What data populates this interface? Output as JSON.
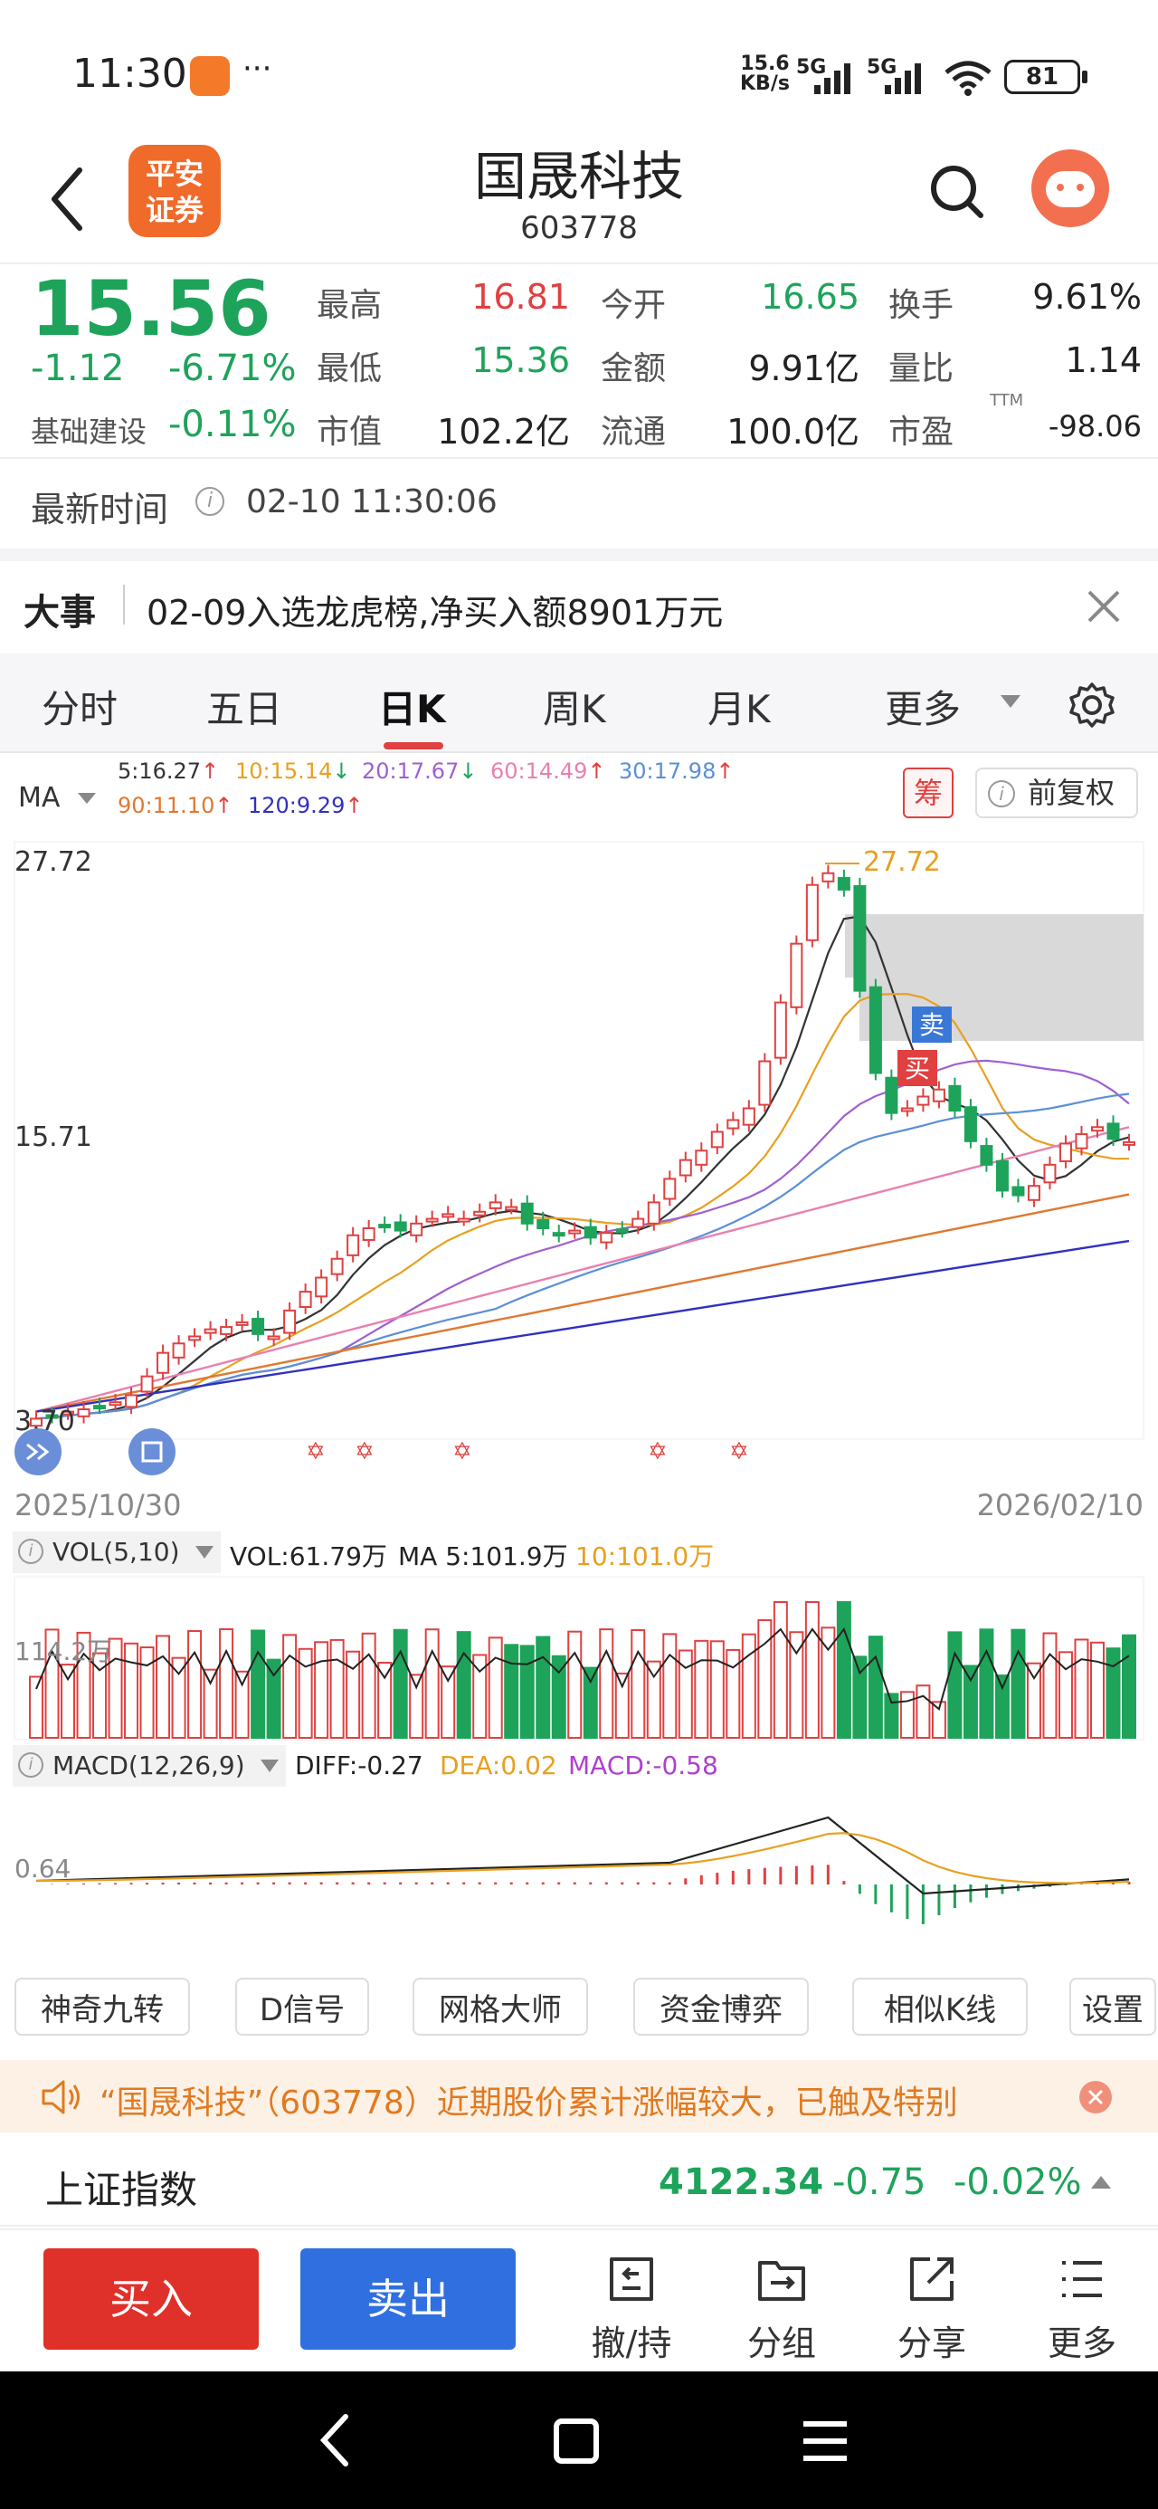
{
  "status_bar": {
    "time": "11:30",
    "network_speed_value": "15.6",
    "network_speed_unit": "KB/s",
    "signal1": "5G",
    "signal2": "5G",
    "battery": "81",
    "more_dots": "···"
  },
  "header": {
    "title": "国晟科技",
    "code": "603778",
    "broker_logo_line1": "平安",
    "broker_logo_line2": "证券"
  },
  "quote": {
    "price": "15.56",
    "change": "-1.12",
    "change_pct": "-6.71%",
    "sector_name": "基础建设",
    "sector_pct": "-0.11%",
    "high_label": "最高",
    "high": "16.81",
    "low_label": "最低",
    "low": "15.36",
    "mktcap_label": "市值",
    "mktcap": "102.2亿",
    "open_label": "今开",
    "open": "16.65",
    "amount_label": "金额",
    "amount": "9.91亿",
    "float_label": "流通",
    "float": "100.0亿",
    "turnover_label": "换手",
    "turnover": "9.61%",
    "vol_ratio_label": "量比",
    "vol_ratio": "1.14",
    "pe_label": "市盈",
    "pe_sup": "TTM",
    "pe": "-98.06"
  },
  "update": {
    "label": "最新时间",
    "time": "02-10 11:30:06"
  },
  "news": {
    "label": "大事",
    "text": "02-09入选龙虎榜,净买入额8901万元"
  },
  "tabs": [
    "分时",
    "五日",
    "日K",
    "周K",
    "月K",
    "更多"
  ],
  "ma_legend": {
    "label": "MA",
    "items": [
      {
        "text": "5:16.27",
        "arrow": "↑",
        "color": "#333333"
      },
      {
        "text": "10:15.14",
        "arrow": "↓",
        "color": "#e8a020"
      },
      {
        "text": "20:17.67",
        "arrow": "↓",
        "color": "#a060d0"
      },
      {
        "text": "60:14.49",
        "arrow": "↑",
        "color": "#e880b0"
      },
      {
        "text": "30:17.98",
        "arrow": "↑",
        "color": "#5b8fd6"
      },
      {
        "text": "90:11.10",
        "arrow": "↑",
        "color": "#e07830"
      },
      {
        "text": "120:9.29",
        "arrow": "↑",
        "color": "#3030c0"
      }
    ],
    "chip_button": "筹",
    "adjust_button": "前复权"
  },
  "chart_data": {
    "type": "candlestick",
    "price_max_label": "27.72",
    "price_mid_label": "15.71",
    "price_min_label": "3.70",
    "peak_annotation": "27.72",
    "sell_marker": "卖",
    "buy_marker": "买",
    "date_start": "2025/10/30",
    "date_end": "2026/02/10",
    "closes": [
      3.8,
      3.9,
      4.1,
      4.2,
      4.3,
      4.5,
      4.8,
      5.6,
      6.6,
      7.0,
      7.3,
      7.6,
      7.7,
      7.9,
      7.4,
      7.3,
      8.4,
      9.2,
      9.8,
      10.6,
      11.6,
      11.9,
      12.0,
      11.8,
      12.1,
      12.3,
      12.5,
      12.3,
      12.6,
      13.0,
      12.8,
      12.1,
      11.9,
      11.6,
      11.8,
      11.5,
      11.7,
      11.8,
      12.3,
      13.0,
      14.0,
      14.8,
      15.2,
      16.0,
      16.5,
      17.0,
      19.0,
      21.5,
      24.0,
      26.5,
      27.0,
      26.3,
      22.0,
      18.5,
      16.8,
      17.0,
      17.5,
      17.8,
      16.9,
      15.6,
      14.6,
      13.5,
      13.3,
      13.7,
      14.6,
      15.5,
      15.9,
      16.2,
      15.7,
      15.56
    ],
    "volume_label": "VOL(5,10)",
    "volume_values": "VOL:61.79万",
    "volume_ma5": "MA 5:101.9万",
    "volume_ma10": "10:101.0万",
    "volume_axis": "114.2万",
    "macd_label": "MACD(12,26,9)",
    "diff": "DIFF:-0.27",
    "dea": "DEA:0.02",
    "macd": "MACD:-0.58",
    "macd_axis": "0.64"
  },
  "tools": [
    "神奇九转",
    "D信号",
    "网格大师",
    "资金博弈",
    "相似K线",
    "设置"
  ],
  "alert": {
    "text": "“国晟科技”（603778）近期股价累计涨幅较大，已触及特别"
  },
  "index_bar": {
    "name": "上证指数",
    "value": "4122.34",
    "change": "-0.75",
    "pct": "-0.02%"
  },
  "bottom": {
    "buy": "买入",
    "sell": "卖出",
    "actions": [
      "撤/持",
      "分组",
      "分享",
      "更多"
    ]
  },
  "colors": {
    "up": "#e04040",
    "down": "#1ea35a",
    "buy_button": "#e0302a",
    "sell_button": "#2f6fe0",
    "alert_bg": "#fdf1e6",
    "alert_text": "#e07a20"
  }
}
